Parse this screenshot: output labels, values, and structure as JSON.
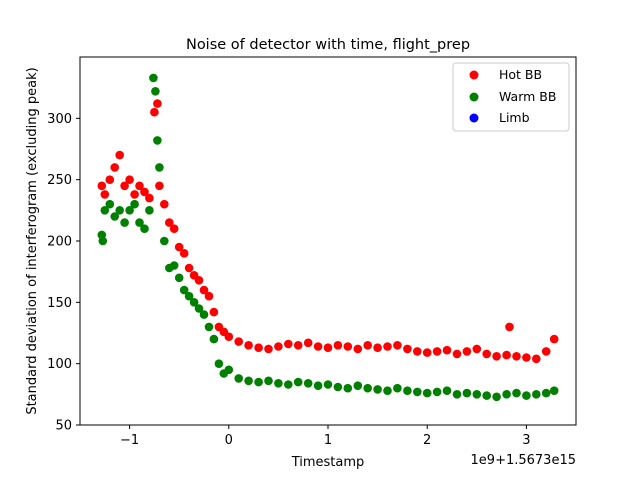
{
  "chart_data": {
    "type": "scatter",
    "title": "Noise of detector with time, flight_prep",
    "xlabel": "Timestamp",
    "ylabel": "Standard deviation of interferogram (excluding peak)",
    "offset_text": "1e9+1.5673e15",
    "xlim": [
      -1.5,
      3.5
    ],
    "ylim": [
      50,
      350
    ],
    "xticks": [
      -1,
      0,
      1,
      2,
      3
    ],
    "xtick_labels": [
      "−1",
      "0",
      "1",
      "2",
      "3"
    ],
    "yticks": [
      50,
      100,
      150,
      200,
      250,
      300
    ],
    "ytick_labels": [
      "50",
      "100",
      "150",
      "200",
      "250",
      "300"
    ],
    "legend_position": "top-right",
    "grid": false,
    "series": [
      {
        "name": "Hot BB",
        "color": "#ff0000",
        "x": [
          -1.28,
          -1.25,
          -1.2,
          -1.15,
          -1.1,
          -1.05,
          -1.0,
          -0.95,
          -0.9,
          -0.85,
          -0.8,
          -0.75,
          -0.72,
          -0.7,
          -0.65,
          -0.6,
          -0.55,
          -0.5,
          -0.45,
          -0.4,
          -0.35,
          -0.3,
          -0.25,
          -0.2,
          -0.15,
          -0.1,
          -0.05,
          0.0,
          0.1,
          0.2,
          0.3,
          0.4,
          0.5,
          0.6,
          0.7,
          0.8,
          0.9,
          1.0,
          1.1,
          1.2,
          1.3,
          1.4,
          1.5,
          1.6,
          1.7,
          1.8,
          1.9,
          2.0,
          2.1,
          2.2,
          2.3,
          2.4,
          2.5,
          2.6,
          2.7,
          2.8,
          2.83,
          2.9,
          3.0,
          3.1,
          3.2,
          3.28
        ],
        "y": [
          245,
          238,
          250,
          260,
          270,
          245,
          250,
          238,
          245,
          240,
          235,
          305,
          312,
          245,
          230,
          215,
          210,
          195,
          190,
          178,
          172,
          168,
          160,
          155,
          142,
          130,
          126,
          122,
          118,
          115,
          113,
          112,
          114,
          116,
          115,
          117,
          114,
          113,
          115,
          114,
          112,
          115,
          113,
          114,
          115,
          112,
          110,
          109,
          110,
          111,
          108,
          110,
          112,
          108,
          106,
          107,
          130,
          106,
          105,
          104,
          110,
          120
        ]
      },
      {
        "name": "Warm BB",
        "color": "#008000",
        "x": [
          -1.28,
          -1.27,
          -1.25,
          -1.2,
          -1.15,
          -1.1,
          -1.05,
          -1.0,
          -0.95,
          -0.9,
          -0.85,
          -0.8,
          -0.76,
          -0.74,
          -0.72,
          -0.7,
          -0.65,
          -0.6,
          -0.55,
          -0.5,
          -0.45,
          -0.4,
          -0.35,
          -0.3,
          -0.25,
          -0.2,
          -0.15,
          -0.1,
          -0.05,
          0.0,
          0.1,
          0.2,
          0.3,
          0.4,
          0.5,
          0.6,
          0.7,
          0.8,
          0.9,
          1.0,
          1.1,
          1.2,
          1.3,
          1.4,
          1.5,
          1.6,
          1.7,
          1.8,
          1.9,
          2.0,
          2.1,
          2.2,
          2.3,
          2.4,
          2.5,
          2.6,
          2.7,
          2.8,
          2.9,
          3.0,
          3.1,
          3.2,
          3.28
        ],
        "y": [
          205,
          200,
          225,
          230,
          220,
          225,
          215,
          225,
          230,
          215,
          210,
          225,
          333,
          322,
          282,
          260,
          200,
          178,
          180,
          170,
          160,
          155,
          150,
          145,
          140,
          130,
          120,
          100,
          92,
          95,
          88,
          86,
          85,
          86,
          84,
          83,
          85,
          84,
          82,
          83,
          81,
          80,
          82,
          80,
          79,
          78,
          80,
          78,
          77,
          76,
          77,
          78,
          75,
          76,
          75,
          74,
          73,
          75,
          76,
          74,
          75,
          76,
          78
        ]
      },
      {
        "name": "Limb",
        "color": "#0000ff",
        "x": [],
        "y": []
      }
    ]
  }
}
